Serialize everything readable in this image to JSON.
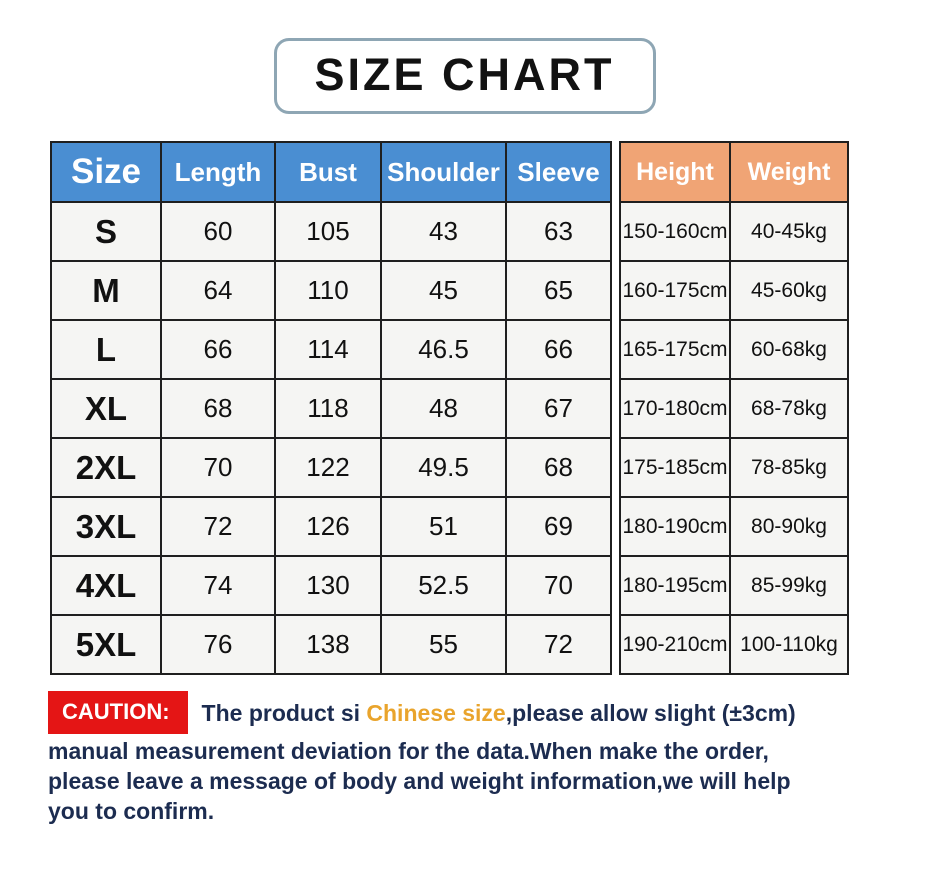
{
  "title": "SIZE CHART",
  "table": {
    "main_headers": [
      "Size",
      "Length",
      "Bust",
      "Shoulder",
      "Sleeve"
    ],
    "side_headers": [
      "Height",
      "Weight"
    ],
    "rows": [
      {
        "size": "S",
        "length": "60",
        "bust": "105",
        "shoulder": "43",
        "sleeve": "63",
        "height": "150-160cm",
        "weight": "40-45kg"
      },
      {
        "size": "M",
        "length": "64",
        "bust": "110",
        "shoulder": "45",
        "sleeve": "65",
        "height": "160-175cm",
        "weight": "45-60kg"
      },
      {
        "size": "L",
        "length": "66",
        "bust": "114",
        "shoulder": "46.5",
        "sleeve": "66",
        "height": "165-175cm",
        "weight": "60-68kg"
      },
      {
        "size": "XL",
        "length": "68",
        "bust": "118",
        "shoulder": "48",
        "sleeve": "67",
        "height": "170-180cm",
        "weight": "68-78kg"
      },
      {
        "size": "2XL",
        "length": "70",
        "bust": "122",
        "shoulder": "49.5",
        "sleeve": "68",
        "height": "175-185cm",
        "weight": "78-85kg"
      },
      {
        "size": "3XL",
        "length": "72",
        "bust": "126",
        "shoulder": "51",
        "sleeve": "69",
        "height": "180-190cm",
        "weight": "80-90kg"
      },
      {
        "size": "4XL",
        "length": "74",
        "bust": "130",
        "shoulder": "52.5",
        "sleeve": "70",
        "height": "180-195cm",
        "weight": "85-99kg"
      },
      {
        "size": "5XL",
        "length": "76",
        "bust": "138",
        "shoulder": "55",
        "sleeve": "72",
        "height": "190-210cm",
        "weight": "100-110kg"
      }
    ]
  },
  "caution": {
    "badge": "CAUTION:",
    "lines": [
      [
        {
          "text": "The product si ",
          "style": "navy"
        },
        {
          "text": "Chinese size",
          "style": "orange"
        },
        {
          "text": ",please allow slight (±3cm)",
          "style": "navy"
        }
      ],
      [
        {
          "text": "manual measurement deviation for the data.When make the order,",
          "style": "navy"
        }
      ],
      [
        {
          "text": "please leave a message of body and weight information,we will help",
          "style": "navy"
        }
      ],
      [
        {
          "text": "you to confirm.",
          "style": "navy"
        }
      ]
    ]
  },
  "colors": {
    "header_blue": "#4a8ed2",
    "header_peach": "#f0a475",
    "caution_red": "#e41515",
    "text_navy": "#1c2c50",
    "text_orange": "#e9a42c",
    "title_border": "#8ea6b4",
    "cell_bg": "#f5f5f3"
  }
}
